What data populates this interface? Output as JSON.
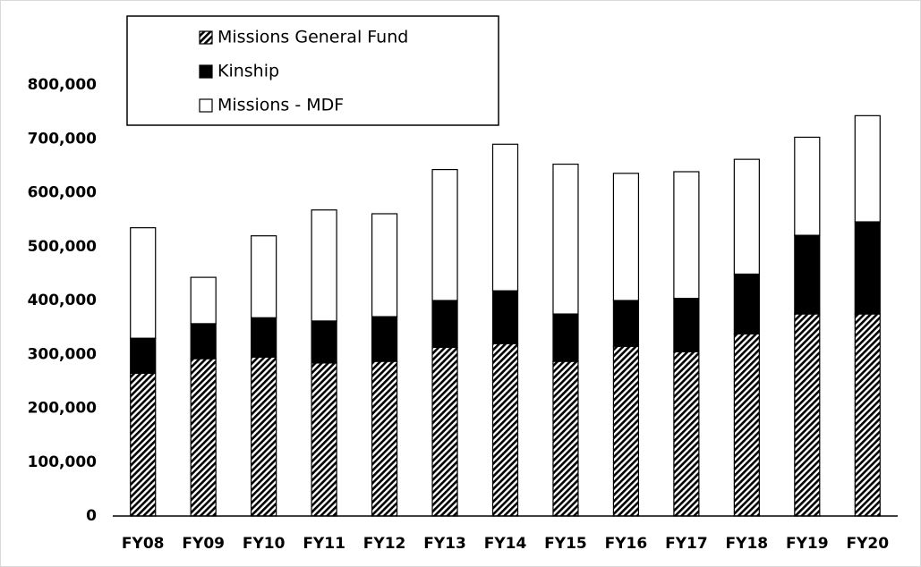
{
  "chart_data": {
    "type": "stacked_bar",
    "categories": [
      "FY08",
      "FY09",
      "FY10",
      "FY11",
      "FY12",
      "FY13",
      "FY14",
      "FY15",
      "FY16",
      "FY17",
      "FY18",
      "FY19",
      "FY20"
    ],
    "series": [
      {
        "name": "Missions General Fund",
        "color": "#000000",
        "pattern": "hatch",
        "values": [
          265000,
          292000,
          295000,
          284000,
          287000,
          313000,
          320000,
          287000,
          315000,
          305000,
          338000,
          375000,
          375000
        ]
      },
      {
        "name": "Kinship",
        "color": "#000000",
        "values": [
          65000,
          65000,
          73000,
          78000,
          83000,
          87000,
          98000,
          88000,
          85000,
          99000,
          111000,
          146000,
          171000
        ]
      },
      {
        "name": "Missions - MDF",
        "color": "#ffffff",
        "values": [
          205000,
          86000,
          152000,
          206000,
          191000,
          243000,
          272000,
          278000,
          236000,
          235000,
          213000,
          182000,
          197000
        ]
      }
    ],
    "ylim": [
      0,
      800000
    ],
    "yticks": [
      0,
      {
        "value": 100000,
        "label": "100,000"
      },
      {
        "value": 200000,
        "label": "200,000"
      },
      {
        "value": 300000,
        "label": "300,000"
      },
      {
        "value": 400000,
        "label": "400,000"
      },
      {
        "value": 500000,
        "label": "500,000"
      },
      {
        "value": 600000,
        "label": "600,000"
      },
      {
        "value": 700000,
        "label": "700,000"
      },
      {
        "value": 800000,
        "label": "800,000"
      }
    ],
    "grid": false,
    "legend": "top-left"
  }
}
